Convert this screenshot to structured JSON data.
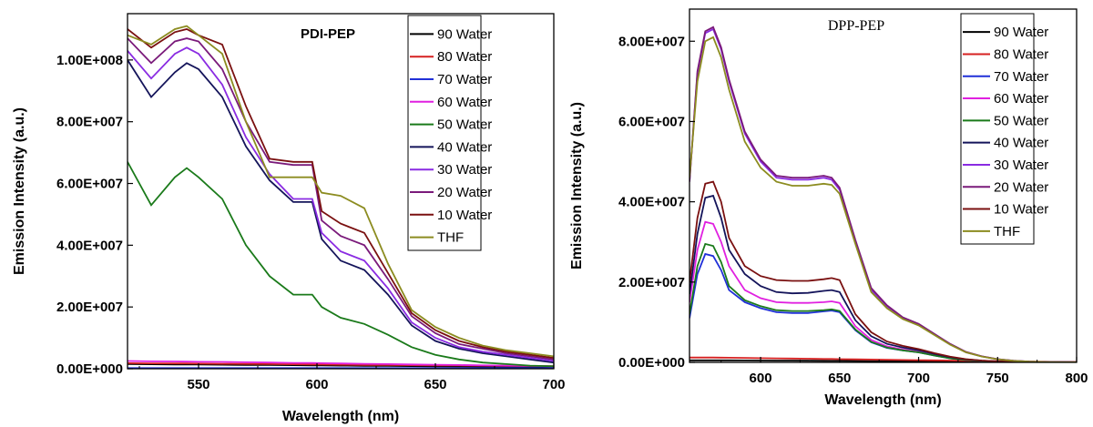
{
  "chart_data": [
    {
      "type": "line",
      "title": "PDI-PEP",
      "xlabel": "Wavelength (nm)",
      "ylabel": "Emission Intensity (a.u.)",
      "xlim": [
        520,
        700
      ],
      "ylim": [
        0,
        115000000
      ],
      "xticks": [
        550,
        600,
        650,
        700
      ],
      "xtick_labels": [
        "550",
        "600",
        "650",
        "700"
      ],
      "yticks": [
        0,
        20000000,
        40000000,
        60000000,
        80000000,
        100000000
      ],
      "ytick_labels": [
        "0.00E+000",
        "2.00E+007",
        "4.00E+007",
        "6.00E+007",
        "8.00E+007",
        "1.00E+008"
      ],
      "grid": false,
      "legend_position": "top-right",
      "x": [
        520,
        530,
        540,
        545,
        550,
        560,
        570,
        580,
        590,
        598,
        602,
        610,
        620,
        630,
        640,
        650,
        660,
        670,
        680,
        690,
        700
      ],
      "series": [
        {
          "name": "90 Water",
          "color": "#000000",
          "values": [
            1500000,
            1450000,
            1400000,
            1380000,
            1350000,
            1300000,
            1250000,
            1200000,
            1150000,
            1100000,
            1050000,
            1000000,
            950000,
            900000,
            850000,
            800000,
            750000,
            700000,
            650000,
            600000,
            550000
          ]
        },
        {
          "name": "80 Water",
          "color": "#d62020",
          "values": [
            1800000,
            1750000,
            1700000,
            1700000,
            1650000,
            1600000,
            1550000,
            1500000,
            1450000,
            1400000,
            1350000,
            1300000,
            1250000,
            1200000,
            1150000,
            1100000,
            1050000,
            1000000,
            950000,
            900000,
            850000
          ]
        },
        {
          "name": "70 Water",
          "color": "#2030d8",
          "values": [
            200000,
            200000,
            200000,
            200000,
            200000,
            200000,
            200000,
            200000,
            200000,
            200000,
            200000,
            200000,
            200000,
            200000,
            200000,
            200000,
            200000,
            200000,
            200000,
            200000,
            200000
          ]
        },
        {
          "name": "60 Water",
          "color": "#e020e0",
          "values": [
            2500000,
            2400000,
            2350000,
            2300000,
            2250000,
            2200000,
            2100000,
            2000000,
            1900000,
            1850000,
            1800000,
            1700000,
            1600000,
            1500000,
            1400000,
            1300000,
            1200000,
            1100000,
            1000000,
            900000,
            800000
          ]
        },
        {
          "name": "50 Water",
          "color": "#1a7a1a",
          "values": [
            67000000,
            53000000,
            62000000,
            65000000,
            62000000,
            55000000,
            40000000,
            30000000,
            24000000,
            24000000,
            20000000,
            16500000,
            14500000,
            11000000,
            7000000,
            4500000,
            3000000,
            2000000,
            1500000,
            1000000,
            800000
          ]
        },
        {
          "name": "40 Water",
          "color": "#14145a",
          "values": [
            100000000,
            88000000,
            96000000,
            99000000,
            97000000,
            88000000,
            72000000,
            61000000,
            54000000,
            54000000,
            42000000,
            35000000,
            32000000,
            24000000,
            14000000,
            9000000,
            6500000,
            5000000,
            4000000,
            3000000,
            2000000
          ]
        },
        {
          "name": "30 Water",
          "color": "#8a2be2",
          "values": [
            103000000,
            94000000,
            102000000,
            104000000,
            102000000,
            92000000,
            75000000,
            63000000,
            55000000,
            55000000,
            44000000,
            38000000,
            35000000,
            26000000,
            15000000,
            10000000,
            7000000,
            5500000,
            4500000,
            3500000,
            2500000
          ]
        },
        {
          "name": "20 Water",
          "color": "#7a1a7a",
          "values": [
            107000000,
            99000000,
            106000000,
            107000000,
            106000000,
            97000000,
            80000000,
            67000000,
            66000000,
            66000000,
            48000000,
            43000000,
            40000000,
            29000000,
            17000000,
            11500000,
            8000000,
            6500000,
            5000000,
            4000000,
            3000000
          ]
        },
        {
          "name": "10 Water",
          "color": "#7a1010",
          "values": [
            110000000,
            104000000,
            109000000,
            110000000,
            108000000,
            105000000,
            85000000,
            68000000,
            67000000,
            67000000,
            51000000,
            47000000,
            44000000,
            31000000,
            18000000,
            12500000,
            9000000,
            7000000,
            5500000,
            4500000,
            3500000
          ]
        },
        {
          "name": "THF",
          "color": "#8c8c20",
          "values": [
            108000000,
            105000000,
            110000000,
            111000000,
            108000000,
            102000000,
            80000000,
            62000000,
            62000000,
            62000000,
            57000000,
            56000000,
            52000000,
            34000000,
            19000000,
            13500000,
            10000000,
            7500000,
            6000000,
            5000000,
            4000000
          ]
        }
      ]
    },
    {
      "type": "line",
      "title": "DPP-PEP",
      "xlabel": "Wavelength (nm)",
      "ylabel": "Emission Intensity (a.u.)",
      "xlim": [
        555,
        800
      ],
      "ylim": [
        0,
        88000000
      ],
      "xticks": [
        600,
        650,
        700,
        750,
        800
      ],
      "xtick_labels": [
        "600",
        "650",
        "700",
        "750",
        "800"
      ],
      "yticks": [
        0,
        20000000,
        40000000,
        60000000,
        80000000
      ],
      "ytick_labels": [
        "0.00E+000",
        "2.00E+007",
        "4.00E+007",
        "6.00E+007",
        "8.00E+007"
      ],
      "grid": false,
      "legend_position": "top-right",
      "x": [
        555,
        560,
        565,
        570,
        575,
        580,
        590,
        600,
        610,
        620,
        630,
        640,
        645,
        650,
        660,
        670,
        680,
        690,
        700,
        710,
        720,
        730,
        740,
        750,
        760,
        770,
        780,
        790,
        800
      ],
      "series": [
        {
          "name": "90 Water",
          "color": "#000000",
          "values": [
            500000,
            500000,
            500000,
            500000,
            500000,
            500000,
            480000,
            460000,
            440000,
            420000,
            400000,
            380000,
            370000,
            360000,
            340000,
            320000,
            300000,
            280000,
            260000,
            240000,
            220000,
            200000,
            180000,
            160000,
            140000,
            120000,
            100000,
            80000,
            60000
          ]
        },
        {
          "name": "80 Water",
          "color": "#d62020",
          "values": [
            1200000,
            1200000,
            1200000,
            1200000,
            1180000,
            1150000,
            1100000,
            1050000,
            1000000,
            950000,
            900000,
            850000,
            830000,
            800000,
            750000,
            700000,
            650000,
            600000,
            550000,
            500000,
            450000,
            400000,
            350000,
            300000,
            250000,
            200000,
            150000,
            100000,
            80000
          ]
        },
        {
          "name": "70 Water",
          "color": "#2030d8",
          "values": [
            11000000,
            22000000,
            27000000,
            26500000,
            23000000,
            18000000,
            15000000,
            13500000,
            12500000,
            12300000,
            12300000,
            12700000,
            12900000,
            12500000,
            8000000,
            5000000,
            3600000,
            3000000,
            2500000,
            1700000,
            1000000,
            600000,
            350000,
            200000,
            120000,
            80000,
            50000,
            30000,
            20000
          ]
        },
        {
          "name": "60 Water",
          "color": "#e020e0",
          "values": [
            15000000,
            28000000,
            35000000,
            34500000,
            30000000,
            24000000,
            18000000,
            16000000,
            15000000,
            14800000,
            14800000,
            15000000,
            15200000,
            14800000,
            9000000,
            5600000,
            4000000,
            3200000,
            2600000,
            1800000,
            1100000,
            650000,
            380000,
            220000,
            130000,
            80000,
            50000,
            30000,
            20000
          ]
        },
        {
          "name": "50 Water",
          "color": "#1a7a1a",
          "values": [
            12000000,
            24000000,
            29500000,
            29000000,
            25000000,
            19000000,
            15500000,
            14000000,
            13000000,
            12800000,
            12800000,
            13000000,
            13200000,
            12800000,
            8200000,
            5100000,
            3700000,
            3000000,
            2500000,
            1700000,
            1000000,
            600000,
            350000,
            200000,
            120000,
            80000,
            50000,
            30000,
            20000
          ]
        },
        {
          "name": "40 Water",
          "color": "#14145a",
          "values": [
            17000000,
            32000000,
            41000000,
            41500000,
            36000000,
            28000000,
            22000000,
            19000000,
            17500000,
            17200000,
            17300000,
            17800000,
            18000000,
            17500000,
            10500000,
            6500000,
            4600000,
            3700000,
            3000000,
            2100000,
            1300000,
            750000,
            430000,
            250000,
            150000,
            90000,
            55000,
            35000,
            20000
          ]
        },
        {
          "name": "30 Water",
          "color": "#8a2be2",
          "values": [
            45000000,
            72000000,
            82000000,
            83000000,
            78000000,
            70000000,
            57000000,
            50000000,
            46000000,
            45500000,
            45500000,
            46000000,
            45500000,
            43000000,
            30000000,
            18000000,
            14000000,
            11000000,
            9500000,
            7000000,
            4500000,
            2500000,
            1500000,
            800000,
            400000,
            200000,
            100000,
            60000,
            30000
          ]
        },
        {
          "name": "20 Water",
          "color": "#7a1a7a",
          "values": [
            45000000,
            72500000,
            82500000,
            83500000,
            78500000,
            70500000,
            57500000,
            50500000,
            46500000,
            46000000,
            46000000,
            46500000,
            46000000,
            43500000,
            30500000,
            18500000,
            14200000,
            11200000,
            9600000,
            7100000,
            4600000,
            2600000,
            1500000,
            800000,
            400000,
            200000,
            100000,
            60000,
            30000
          ]
        },
        {
          "name": "10 Water",
          "color": "#7a1010",
          "values": [
            20000000,
            36000000,
            44500000,
            45000000,
            40000000,
            31000000,
            24000000,
            21500000,
            20500000,
            20300000,
            20300000,
            20700000,
            21000000,
            20500000,
            12000000,
            7500000,
            5200000,
            4100000,
            3300000,
            2300000,
            1400000,
            800000,
            450000,
            260000,
            150000,
            90000,
            55000,
            35000,
            20000
          ]
        },
        {
          "name": "THF",
          "color": "#8c8c20",
          "values": [
            46000000,
            70000000,
            80000000,
            81000000,
            76000000,
            68000000,
            55000000,
            48500000,
            45000000,
            44000000,
            44000000,
            44500000,
            44200000,
            42000000,
            29500000,
            17500000,
            13500000,
            10800000,
            9200000,
            6800000,
            4400000,
            2500000,
            1450000,
            780000,
            380000,
            190000,
            95000,
            55000,
            25000
          ]
        }
      ]
    }
  ]
}
